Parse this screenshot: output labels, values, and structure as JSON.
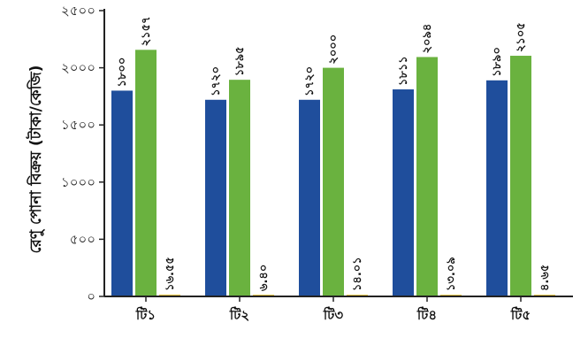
{
  "chart_data": {
    "type": "bar",
    "ylabel": "রেণু পোনা বিক্রয় (টাকা/কেজি)",
    "xlabel": "",
    "ylim": [
      0,
      2500
    ],
    "yticks": [
      0,
      500,
      1000,
      1500,
      2000,
      2500
    ],
    "ytick_labels": [
      "০",
      "৫০০",
      "১০০০",
      "১৫০০",
      "২০০০",
      "২৫০০"
    ],
    "categories": [
      "টি১",
      "টি২",
      "টি৩",
      "টি৪",
      "টি৫"
    ],
    "grid": false,
    "legend": "none",
    "series": [
      {
        "color": "#1f4e9c",
        "values": [
          1800,
          1720,
          1720,
          1811,
          1890
        ],
        "labels": [
          "১৮০০",
          "১৭২০",
          "১৭২০",
          "১৮১১",
          "১৮৯০"
        ]
      },
      {
        "color": "#6ab23f",
        "values": [
          2157,
          1895,
          2000,
          2094,
          2105
        ],
        "labels": [
          "২১৫৭",
          "১৮৯৫",
          "২০০০",
          "২০৯৪",
          "২১০৫"
        ]
      },
      {
        "color": "#e8c64a",
        "values": [
          16.55,
          6.4,
          14.01,
          13.09,
          4.65
        ],
        "labels": [
          "১৬.৫৫",
          "৬.৪০",
          "১৪.০১",
          "১৩.০৯",
          "৪.৬৫"
        ]
      }
    ]
  }
}
